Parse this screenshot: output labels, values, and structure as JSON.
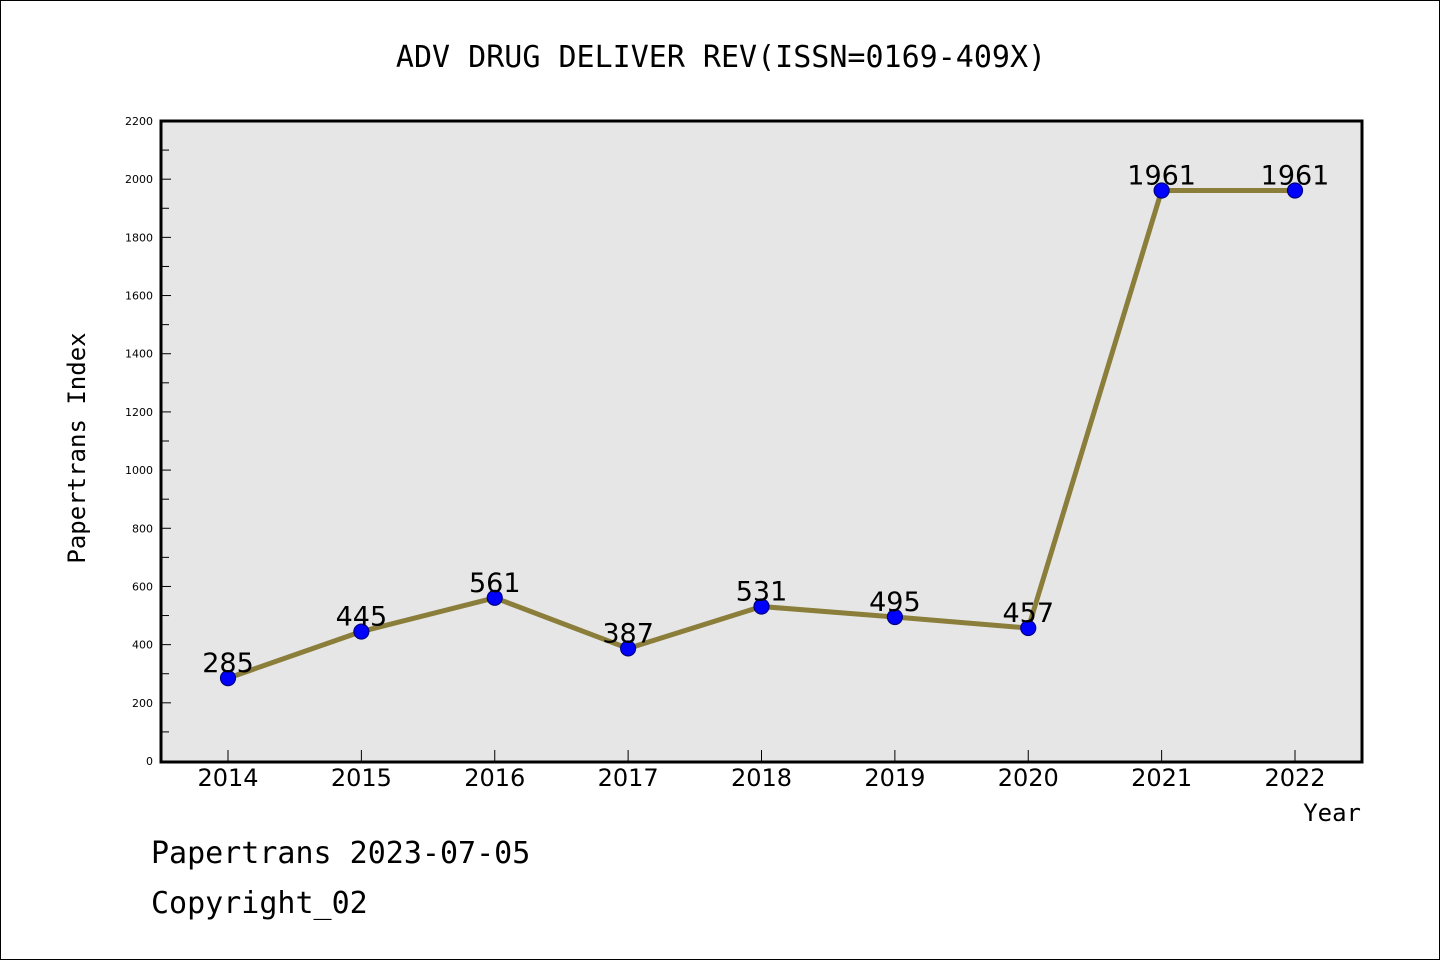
{
  "chart_data": {
    "type": "line",
    "title": "ADV DRUG DELIVER REV(ISSN=0169-409X)",
    "xlabel": "Year",
    "ylabel": "Papertrans Index",
    "categories": [
      "2014",
      "2015",
      "2016",
      "2017",
      "2018",
      "2019",
      "2020",
      "2021",
      "2022"
    ],
    "series": [
      {
        "values": [
          285,
          445,
          561,
          387,
          531,
          495,
          457,
          1961,
          1961
        ]
      }
    ],
    "ylim": [
      0,
      2200
    ],
    "y_ticks": [
      "0",
      "200",
      "400",
      "600",
      "800",
      "1000",
      "1200",
      "1400",
      "1600",
      "1800",
      "2000",
      "2200"
    ],
    "grid": false,
    "data_labels": true,
    "colors": {
      "line": "#8b7d3a",
      "marker_fill": "#0000ff",
      "marker_stroke": "#000080",
      "plot_background": "#e6e6e6"
    }
  },
  "footer": {
    "line1": "Papertrans 2023-07-05",
    "line2": "Copyright_02"
  }
}
